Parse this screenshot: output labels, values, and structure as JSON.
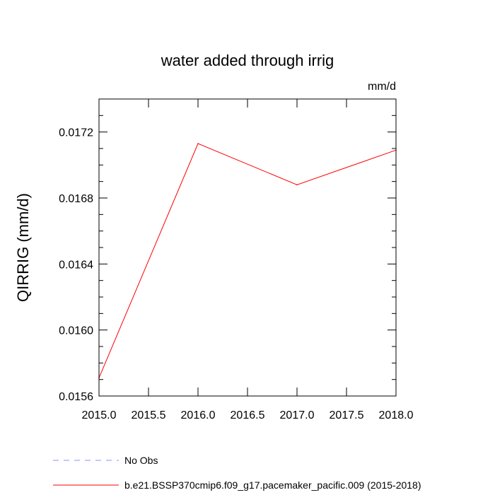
{
  "chart_data": {
    "type": "line",
    "title": "water added through irrig",
    "units": "mm/d",
    "ylabel": "QIRRIG  (mm/d)",
    "xlabel": "",
    "xlim": [
      2015.0,
      2018.0
    ],
    "ylim": [
      0.0156,
      0.0174
    ],
    "x_major_ticks": [
      2015.0,
      2015.5,
      2016.0,
      2016.5,
      2017.0,
      2017.5,
      2018.0
    ],
    "x_tick_labels": [
      "2015.0",
      "2015.5",
      "2016.0",
      "2016.5",
      "2017.0",
      "2017.5",
      "2018.0"
    ],
    "x_minor_step": 0.5,
    "y_major_ticks": [
      0.0156,
      0.016,
      0.0164,
      0.0168,
      0.0172
    ],
    "y_tick_labels": [
      "0.0156",
      "0.0160",
      "0.0164",
      "0.0168",
      "0.0172"
    ],
    "y_minor_step": 0.0001,
    "series": [
      {
        "name": "b.e21.BSSP370cmip6.f09_g17.pacemaker_pacific.009 (2015-2018)",
        "color": "#ff0000",
        "dash": "solid",
        "x": [
          2015.0,
          2016.0,
          2017.0,
          2018.0
        ],
        "y": [
          0.01571,
          0.01713,
          0.01688,
          0.01709
        ]
      }
    ],
    "legend": [
      {
        "label": "No Obs",
        "color": "#8c8cff",
        "dash": "dashed"
      },
      {
        "label": "b.e21.BSSP370cmip6.f09_g17.pacemaker_pacific.009 (2015-2018)",
        "color": "#ff0000",
        "dash": "solid"
      }
    ],
    "legend_position": "bottom"
  }
}
